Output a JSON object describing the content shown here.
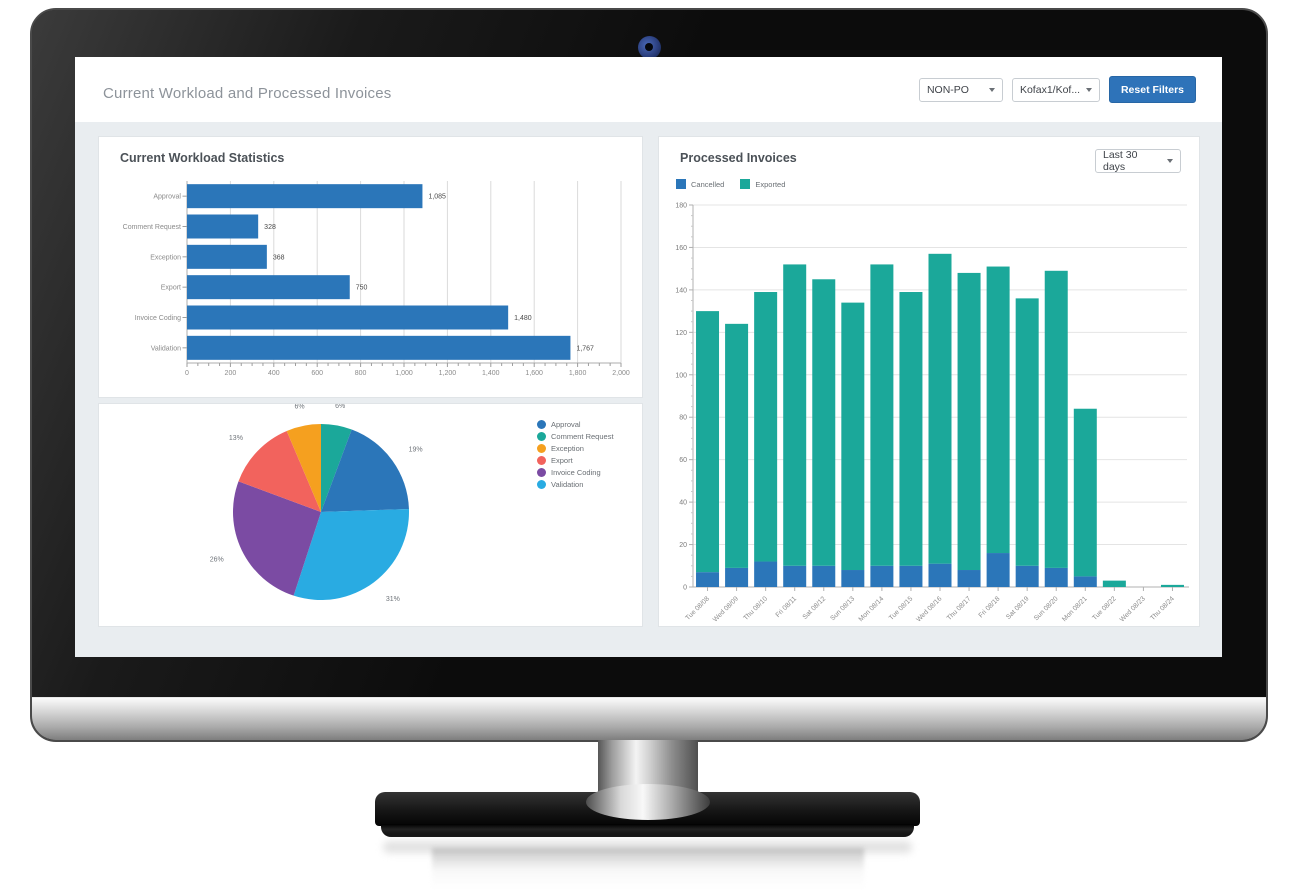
{
  "header": {
    "title": "Current Workload and Processed Invoices",
    "po_filter": "NON-PO",
    "batch_filter": "Kofax1/Kof...",
    "reset_button": "Reset Filters"
  },
  "colors": {
    "accent_blue": "#2b76b9",
    "teal": "#1ba89a",
    "band_background": "#e9edf0",
    "panel_background": "#ffffff"
  },
  "chart_data": [
    {
      "type": "bar",
      "orientation": "horizontal",
      "title": "Current Workload Statistics",
      "categories": [
        "Approval",
        "Comment Request",
        "Exception",
        "Export",
        "Invoice Coding",
        "Validation"
      ],
      "values": [
        1085,
        328,
        368,
        750,
        1480,
        1767
      ],
      "value_labels": [
        "1,085",
        "328",
        "368",
        "750",
        "1,480",
        "1,767"
      ],
      "xlim": [
        0,
        2000
      ],
      "xtick_step": 200,
      "xminor_step": 50,
      "xtick_labels": [
        "0",
        "200",
        "400",
        "600",
        "800",
        "1,000",
        "1,200",
        "1,400",
        "1,600",
        "1,800",
        "2,000"
      ],
      "bar_color": "#2b76b9",
      "grid": true
    },
    {
      "type": "pie",
      "start_angle_deg": 0,
      "slices": [
        {
          "label": "Comment Request",
          "value": 328,
          "pct": "6%",
          "color": "#1ba89a"
        },
        {
          "label": "Approval",
          "value": 1085,
          "pct": "19%",
          "color": "#2b76b9"
        },
        {
          "label": "Validation",
          "value": 1767,
          "pct": "31%",
          "color": "#29abe2"
        },
        {
          "label": "Invoice Coding",
          "value": 1480,
          "pct": "26%",
          "color": "#7b4ba3"
        },
        {
          "label": "Export",
          "value": 750,
          "pct": "13%",
          "color": "#f2635d"
        },
        {
          "label": "Exception",
          "value": 368,
          "pct": "6%",
          "color": "#f5a01f"
        }
      ],
      "legend": [
        "Approval",
        "Comment Request",
        "Exception",
        "Export",
        "Invoice Coding",
        "Validation"
      ],
      "legend_colors": [
        "#2b76b9",
        "#1ba89a",
        "#f5a01f",
        "#f2635d",
        "#7b4ba3",
        "#29abe2"
      ],
      "legend_position": "right"
    },
    {
      "type": "bar",
      "stacked": true,
      "title": "Processed Invoices",
      "period_selector": "Last 30 days",
      "categories": [
        "Tue 08/08",
        "Wed 08/09",
        "Thu 08/10",
        "Fri 08/11",
        "Sat 08/12",
        "Sun 08/13",
        "Mon 08/14",
        "Tue 08/15",
        "Wed 08/16",
        "Thu 08/17",
        "Fri 08/18",
        "Sat 08/19",
        "Sun 08/20",
        "Mon 08/21",
        "Tue 08/22",
        "Wed 08/23",
        "Thu 08/24"
      ],
      "series": [
        {
          "name": "Cancelled",
          "color": "#2b76b9",
          "values": [
            7,
            9,
            12,
            10,
            10,
            8,
            10,
            10,
            11,
            8,
            16,
            10,
            9,
            5,
            0,
            0,
            0
          ]
        },
        {
          "name": "Exported",
          "color": "#1ba89a",
          "values": [
            123,
            115,
            127,
            142,
            135,
            126,
            142,
            129,
            146,
            140,
            135,
            126,
            140,
            79,
            3,
            0,
            1
          ]
        }
      ],
      "ylim": [
        0,
        180
      ],
      "ytick_step": 20,
      "yminor_step": 5,
      "grid": true,
      "legend_position": "top-left"
    }
  ]
}
